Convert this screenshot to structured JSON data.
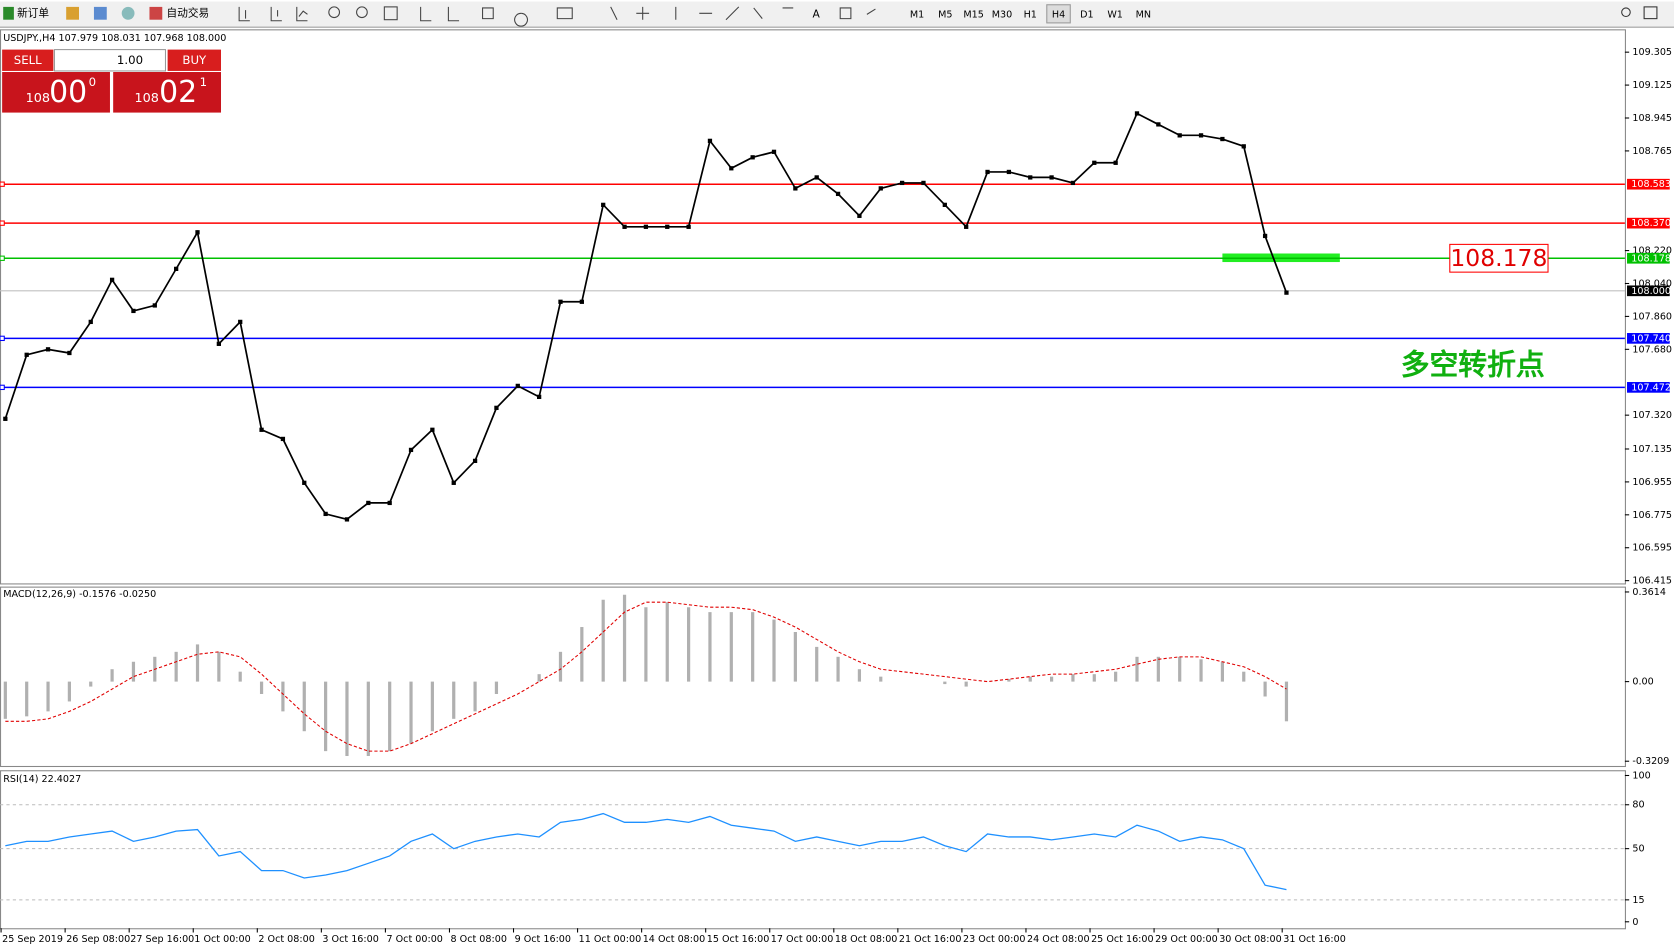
{
  "toolbar": {
    "new_order": "新订单",
    "auto_trading": "自动交易",
    "text_tool": "A",
    "timeframes": [
      "M1",
      "M5",
      "M15",
      "M30",
      "H1",
      "H4",
      "D1",
      "W1",
      "MN"
    ],
    "active_timeframe": "H4"
  },
  "price_chart": {
    "header": "USDJPY.,H4  107.979 108.031 107.968 108.000",
    "trade_panel": {
      "sell": "SELL",
      "buy": "BUY",
      "lots": "1.00",
      "bid_big": "108",
      "bid_pips": "00",
      "bid_frac": "0",
      "ask_big": "108",
      "ask_pips": "02",
      "ask_frac": "1"
    },
    "ylim": [
      106.4,
      109.43
    ],
    "yticks": [
      {
        "value": 109.305,
        "label": "109.305"
      },
      {
        "value": 109.125,
        "label": "109.125"
      },
      {
        "value": 108.945,
        "label": "108.945"
      },
      {
        "value": 108.765,
        "label": "108.765"
      },
      {
        "value": 108.22,
        "label": "108.220"
      },
      {
        "value": 108.04,
        "label": "108.040"
      },
      {
        "value": 107.86,
        "label": "107.860"
      },
      {
        "value": 107.68,
        "label": "107.680"
      },
      {
        "value": 107.32,
        "label": "107.320"
      },
      {
        "value": 107.135,
        "label": "107.135"
      },
      {
        "value": 106.955,
        "label": "106.955"
      },
      {
        "value": 106.775,
        "label": "106.775"
      },
      {
        "value": 106.595,
        "label": "106.595"
      },
      {
        "value": 106.415,
        "label": "106.415"
      }
    ],
    "levels": [
      {
        "value": 108.583,
        "label": "108.583",
        "color": "#ff0000"
      },
      {
        "value": 108.37,
        "label": "108.370",
        "color": "#ff0000"
      },
      {
        "value": 108.178,
        "label": "108.178",
        "color": "#00c000"
      },
      {
        "value": 107.74,
        "label": "107.740",
        "color": "#0000ff"
      },
      {
        "value": 107.472,
        "label": "107.472",
        "color": "#0000ff"
      }
    ],
    "current_price": {
      "value": 108.0,
      "label": "108.000"
    },
    "callout": {
      "value": 108.178,
      "label": "108.178"
    },
    "annotation": "多空转折点",
    "closes": [
      107.3,
      107.65,
      107.68,
      107.66,
      107.83,
      108.06,
      107.89,
      107.92,
      108.12,
      108.32,
      107.71,
      107.83,
      107.24,
      107.19,
      106.95,
      106.78,
      106.75,
      106.84,
      106.84,
      107.13,
      107.24,
      106.95,
      107.07,
      107.36,
      107.48,
      107.42,
      107.94,
      107.94,
      108.47,
      108.35,
      108.35,
      108.35,
      108.35,
      108.82,
      108.67,
      108.73,
      108.76,
      108.56,
      108.62,
      108.53,
      108.41,
      108.56,
      108.59,
      108.59,
      108.47,
      108.35,
      108.65,
      108.65,
      108.62,
      108.62,
      108.59,
      108.7,
      108.7,
      108.97,
      108.91,
      108.85,
      108.85,
      108.83,
      108.79,
      108.3,
      107.99
    ]
  },
  "macd_panel": {
    "label": "MACD(12,26,9) -0.1576 -0.0250",
    "ylim": [
      -0.34,
      0.383
    ],
    "yticks": [
      0.3614,
      {
        "value": 0,
        "label": "0.00"
      },
      -0.3209
    ],
    "histogram": [
      -0.15,
      -0.14,
      -0.12,
      -0.08,
      -0.02,
      0.05,
      0.08,
      0.1,
      0.12,
      0.15,
      0.12,
      0.04,
      -0.05,
      -0.12,
      -0.2,
      -0.28,
      -0.3,
      -0.3,
      -0.28,
      -0.25,
      -0.2,
      -0.15,
      -0.12,
      -0.05,
      0.0,
      0.03,
      0.12,
      0.22,
      0.33,
      0.35,
      0.3,
      0.32,
      0.3,
      0.28,
      0.28,
      0.28,
      0.25,
      0.2,
      0.14,
      0.1,
      0.05,
      0.02,
      0.0,
      0.0,
      -0.01,
      -0.02,
      0.0,
      0.01,
      0.02,
      0.02,
      0.03,
      0.03,
      0.04,
      0.1,
      0.1,
      0.1,
      0.09,
      0.08,
      0.04,
      -0.06,
      -0.16
    ],
    "signal": [
      -0.16,
      -0.16,
      -0.15,
      -0.12,
      -0.08,
      -0.03,
      0.02,
      0.05,
      0.08,
      0.11,
      0.12,
      0.1,
      0.03,
      -0.05,
      -0.13,
      -0.2,
      -0.25,
      -0.28,
      -0.28,
      -0.25,
      -0.21,
      -0.17,
      -0.13,
      -0.09,
      -0.05,
      0.0,
      0.05,
      0.12,
      0.2,
      0.28,
      0.32,
      0.32,
      0.31,
      0.3,
      0.3,
      0.29,
      0.26,
      0.22,
      0.17,
      0.12,
      0.08,
      0.05,
      0.04,
      0.03,
      0.02,
      0.01,
      0.0,
      0.01,
      0.02,
      0.03,
      0.03,
      0.04,
      0.05,
      0.07,
      0.09,
      0.1,
      0.1,
      0.08,
      0.06,
      0.02,
      -0.03
    ]
  },
  "rsi_panel": {
    "label": "RSI(14) 22.4027",
    "ylim": [
      -4.4,
      103.6
    ],
    "yticks": [
      100,
      80,
      50,
      15,
      0
    ],
    "levels": [
      80,
      50,
      15
    ],
    "values": [
      52,
      55,
      55,
      58,
      60,
      62,
      55,
      58,
      62,
      63,
      45,
      48,
      35,
      35,
      30,
      32,
      35,
      40,
      45,
      55,
      60,
      50,
      55,
      58,
      60,
      58,
      68,
      70,
      74,
      68,
      68,
      70,
      68,
      72,
      66,
      64,
      62,
      55,
      58,
      55,
      52,
      55,
      55,
      58,
      52,
      48,
      60,
      58,
      58,
      56,
      58,
      60,
      58,
      66,
      62,
      55,
      58,
      56,
      50,
      25,
      22
    ]
  },
  "time_axis": [
    "25 Sep 2019",
    "26 Sep 08:00",
    "27 Sep 16:00",
    "1 Oct 00:00",
    "2 Oct 08:00",
    "3 Oct 16:00",
    "7 Oct 00:00",
    "8 Oct 08:00",
    "9 Oct 16:00",
    "11 Oct 00:00",
    "14 Oct 08:00",
    "15 Oct 16:00",
    "17 Oct 00:00",
    "18 Oct 08:00",
    "21 Oct 16:00",
    "23 Oct 00:00",
    "24 Oct 08:00",
    "25 Oct 16:00",
    "29 Oct 00:00",
    "30 Oct 08:00",
    "31 Oct 16:00"
  ]
}
